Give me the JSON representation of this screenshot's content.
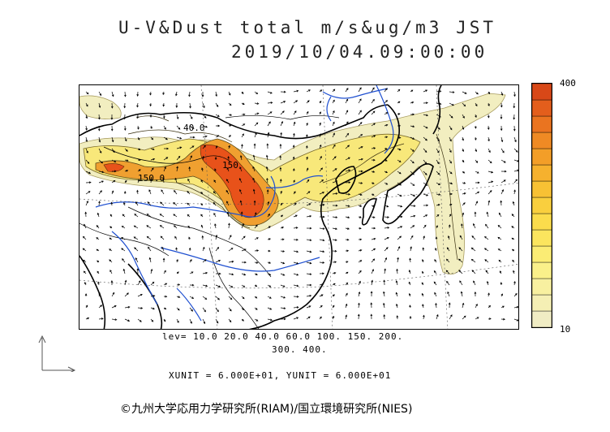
{
  "header": {
    "title": "U-V&Dust total m/s&ug/m3 JST",
    "datetime": "2019/10/04.09:00:00"
  },
  "colorbar": {
    "max_label": "400",
    "min_label": "10",
    "colors": [
      "#f0ecc4",
      "#f5efb4",
      "#f8f0a0",
      "#faf08a",
      "#fbec74",
      "#fbe55e",
      "#fbdc4c",
      "#f9cf3e",
      "#f8c134",
      "#f6b12e",
      "#f39e28",
      "#ef8a24",
      "#ea7420",
      "#e35e1c",
      "#d84818"
    ]
  },
  "map": {
    "contour_labels": [
      "40.0",
      "150",
      "150.0"
    ],
    "colors": {
      "land": "#000000",
      "rivers": "#1e4fd0",
      "dust_low": "#f2eec0",
      "dust_mid": "#f7d85a",
      "dust_high": "#e8521a",
      "wind": "#000000"
    }
  },
  "levels": {
    "line1": "lev= 10.0 20.0 40.0 60.0 100. 150. 200.",
    "line2": "300. 400."
  },
  "units": {
    "text": "XUNIT = 6.000E+01, YUNIT = 6.000E+01"
  },
  "footer": {
    "credit": "©九州大学応用力学研究所(RIAM)/国立環境研究所(NIES)"
  }
}
